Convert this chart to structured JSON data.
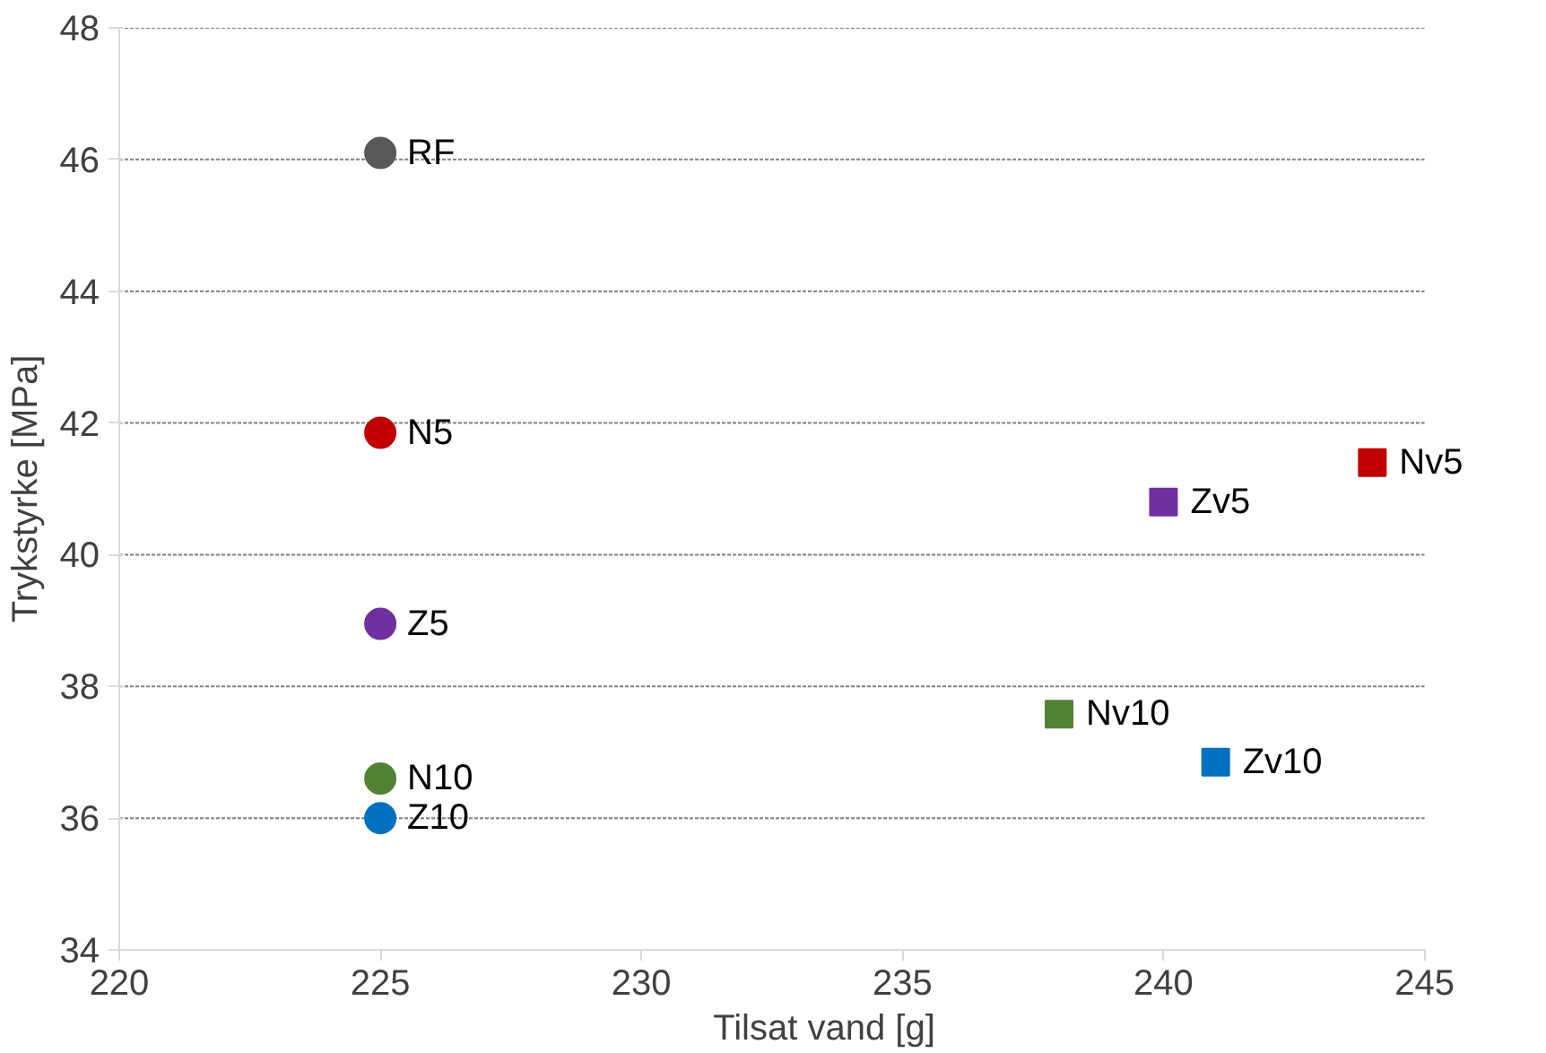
{
  "chart_data": {
    "type": "scatter",
    "xlabel": "Tilsat vand [g]",
    "ylabel": "Trykstyrke [MPa]",
    "xlim": [
      220,
      245
    ],
    "xticks": [
      220,
      225,
      230,
      235,
      240,
      245
    ],
    "ylim": [
      34,
      48
    ],
    "yticks": [
      34,
      36,
      38,
      40,
      42,
      44,
      46,
      48
    ],
    "grid": "y",
    "legend": false,
    "series": [
      {
        "name": "RF",
        "color": "#595959",
        "marker": "circle",
        "x": [
          225
        ],
        "values": [
          46.1
        ]
      },
      {
        "name": "N5",
        "color": "#c00000",
        "marker": "circle",
        "x": [
          225
        ],
        "values": [
          41.85
        ]
      },
      {
        "name": "Z5",
        "color": "#7030a0",
        "marker": "circle",
        "x": [
          225
        ],
        "values": [
          38.95
        ]
      },
      {
        "name": "N10",
        "color": "#548235",
        "marker": "circle",
        "x": [
          225
        ],
        "values": [
          36.6
        ]
      },
      {
        "name": "Z10",
        "color": "#0070c0",
        "marker": "circle",
        "x": [
          225
        ],
        "values": [
          36.0
        ]
      },
      {
        "name": "Nv5",
        "color": "#c00000",
        "marker": "square",
        "x": [
          244
        ],
        "values": [
          41.4
        ]
      },
      {
        "name": "Zv5",
        "color": "#7030a0",
        "marker": "square",
        "x": [
          240
        ],
        "values": [
          40.8
        ]
      },
      {
        "name": "Nv10",
        "color": "#548235",
        "marker": "square",
        "x": [
          238
        ],
        "values": [
          37.58
        ]
      },
      {
        "name": "Zv10",
        "color": "#0070c0",
        "marker": "square",
        "x": [
          241
        ],
        "values": [
          36.85
        ]
      }
    ]
  }
}
